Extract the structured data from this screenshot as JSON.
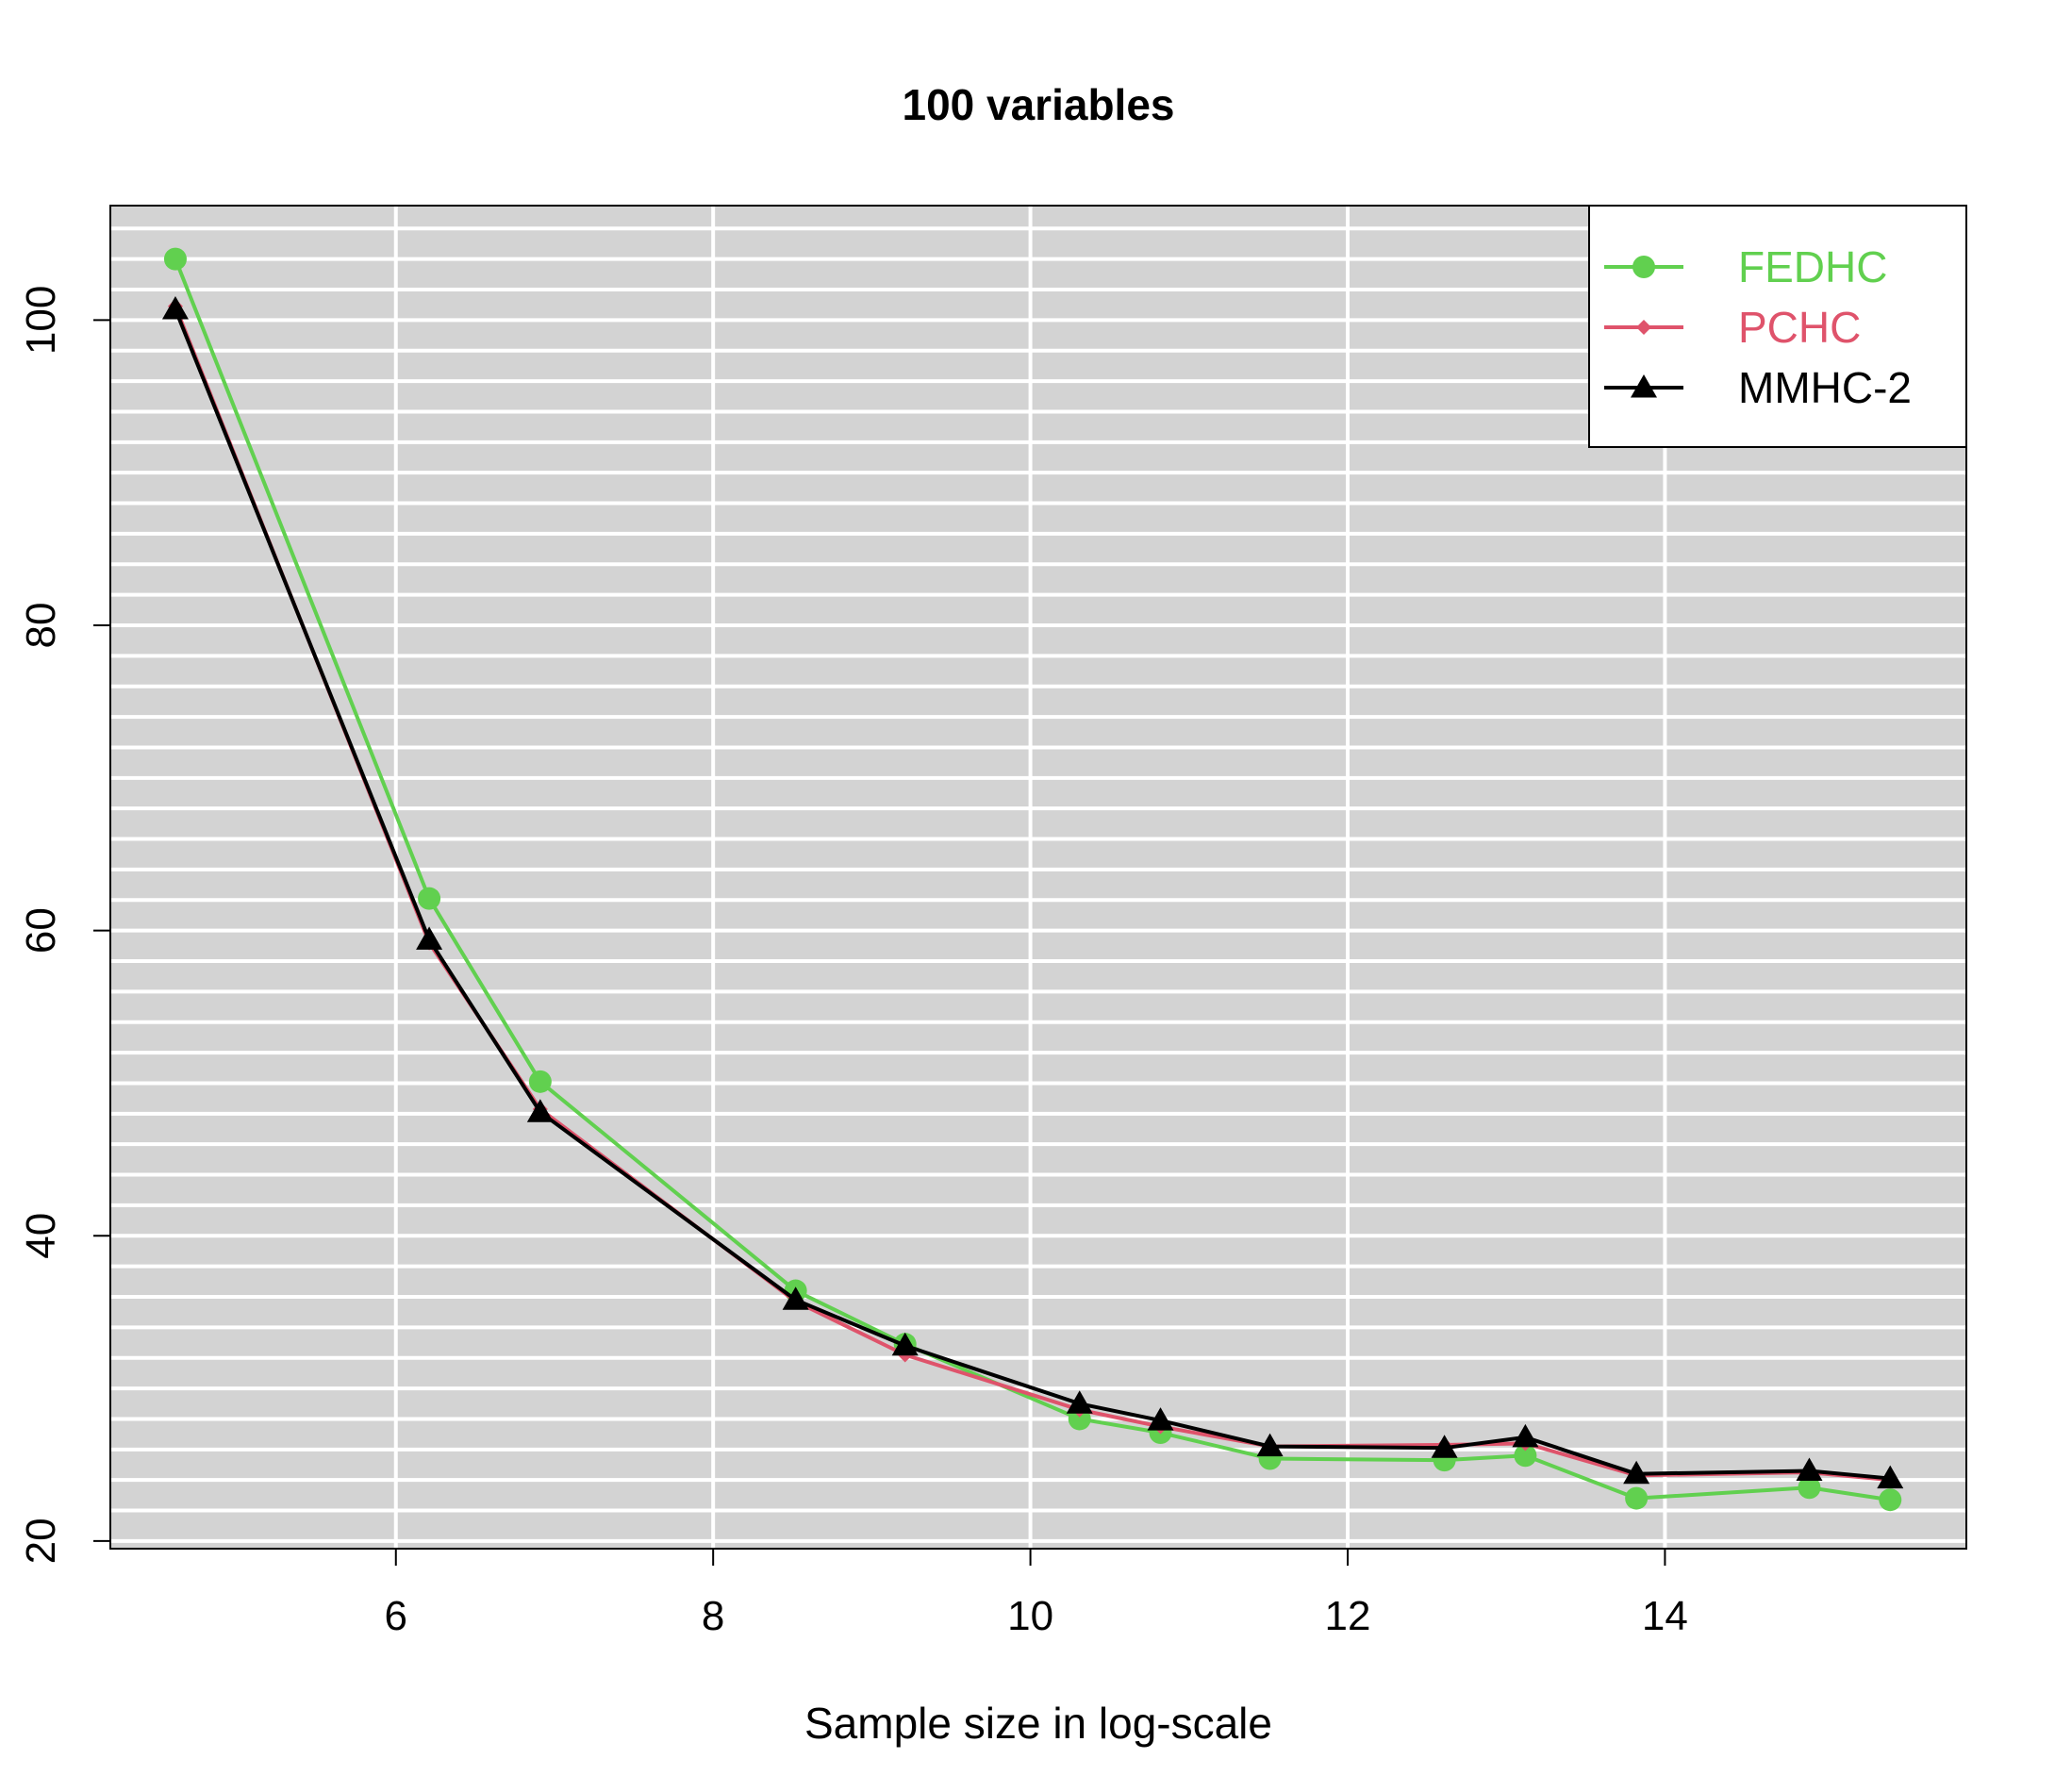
{
  "chart_data": {
    "type": "line",
    "title": "100 variables",
    "xlabel": "Sample size in log-scale",
    "ylabel": "",
    "xlim": [
      4.2,
      15.9
    ],
    "ylim": [
      19.5,
      107.5
    ],
    "x_ticks": [
      6,
      8,
      10,
      12,
      14
    ],
    "y_ticks": [
      20,
      40,
      60,
      80,
      100
    ],
    "x_ticks_label": [
      "6",
      "8",
      "10",
      "12",
      "14"
    ],
    "y_ticks_label": [
      "20",
      "40",
      "60",
      "80",
      "100"
    ],
    "grid": true,
    "grid_major_x": [
      6,
      8,
      10,
      12,
      14
    ],
    "grid_y_step": 2,
    "background": "#d3d3d3",
    "legend_position": "top-right",
    "x": [
      4.61,
      6.21,
      6.91,
      8.52,
      9.21,
      10.31,
      10.82,
      11.51,
      12.61,
      13.12,
      13.82,
      14.91,
      15.42
    ],
    "series": [
      {
        "name": "FEDHC",
        "color": "#61d04f",
        "marker": "circle",
        "values": [
          104.0,
          62.1,
          50.1,
          36.4,
          32.9,
          28.0,
          27.1,
          25.4,
          25.3,
          25.6,
          22.8,
          23.5,
          22.7
        ]
      },
      {
        "name": "PCHC",
        "color": "#df536b",
        "marker": "diamond",
        "values": [
          100.9,
          59.2,
          48.3,
          35.7,
          32.2,
          28.6,
          27.5,
          26.2,
          26.3,
          26.4,
          24.3,
          24.5,
          24.0
        ]
      },
      {
        "name": "MMHC-2",
        "color": "#000000",
        "marker": "triangle",
        "values": [
          100.7,
          59.4,
          48.1,
          35.8,
          32.8,
          29.0,
          27.9,
          26.2,
          26.1,
          26.8,
          24.4,
          24.6,
          24.1
        ]
      }
    ]
  }
}
